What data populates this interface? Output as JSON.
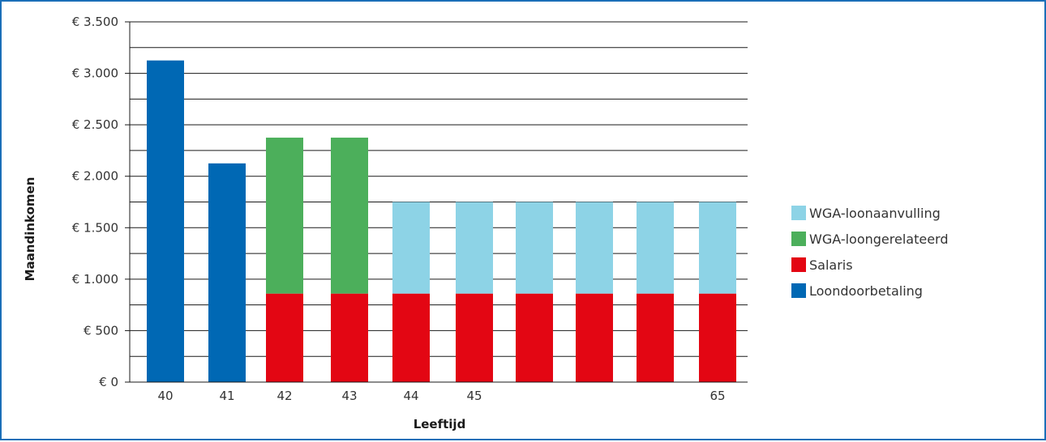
{
  "chart_data": {
    "type": "bar",
    "stacked": true,
    "title": "",
    "xlabel": "Leeftijd",
    "ylabel": "Maandinkomen",
    "ylim": [
      0,
      3500
    ],
    "yticks": [
      0,
      500,
      1000,
      1500,
      2000,
      2500,
      3000,
      3500
    ],
    "ytick_labels": [
      "€ 0",
      "€ 500",
      "€ 1.000",
      "€ 1.500",
      "€ 2.000",
      "€ 2.500",
      "€ 3.000",
      "€ 3.500"
    ],
    "grid": true,
    "grid_step": 250,
    "categories": [
      "40",
      "41",
      "42",
      "43",
      "44",
      "45",
      "",
      "",
      "",
      "65"
    ],
    "series": [
      {
        "name": "Loondoorbetaling",
        "color": "#0068b4",
        "values": [
          3125,
          2125,
          0,
          0,
          0,
          0,
          0,
          0,
          0,
          0
        ]
      },
      {
        "name": "Salaris",
        "color": "#e30613",
        "values": [
          0,
          0,
          860,
          860,
          860,
          860,
          860,
          860,
          860,
          860
        ]
      },
      {
        "name": "WGA-loongerelateerd",
        "color": "#4caf5b",
        "values": [
          0,
          0,
          1515,
          1515,
          0,
          0,
          0,
          0,
          0,
          0
        ]
      },
      {
        "name": "WGA-loonaanvulling",
        "color": "#8dd3e6",
        "values": [
          0,
          0,
          0,
          0,
          890,
          890,
          890,
          890,
          890,
          890
        ]
      }
    ],
    "legend": {
      "position": "right",
      "order": [
        "WGA-loonaanvulling",
        "WGA-loongerelateerd",
        "Salaris",
        "Loondoorbetaling"
      ]
    }
  }
}
